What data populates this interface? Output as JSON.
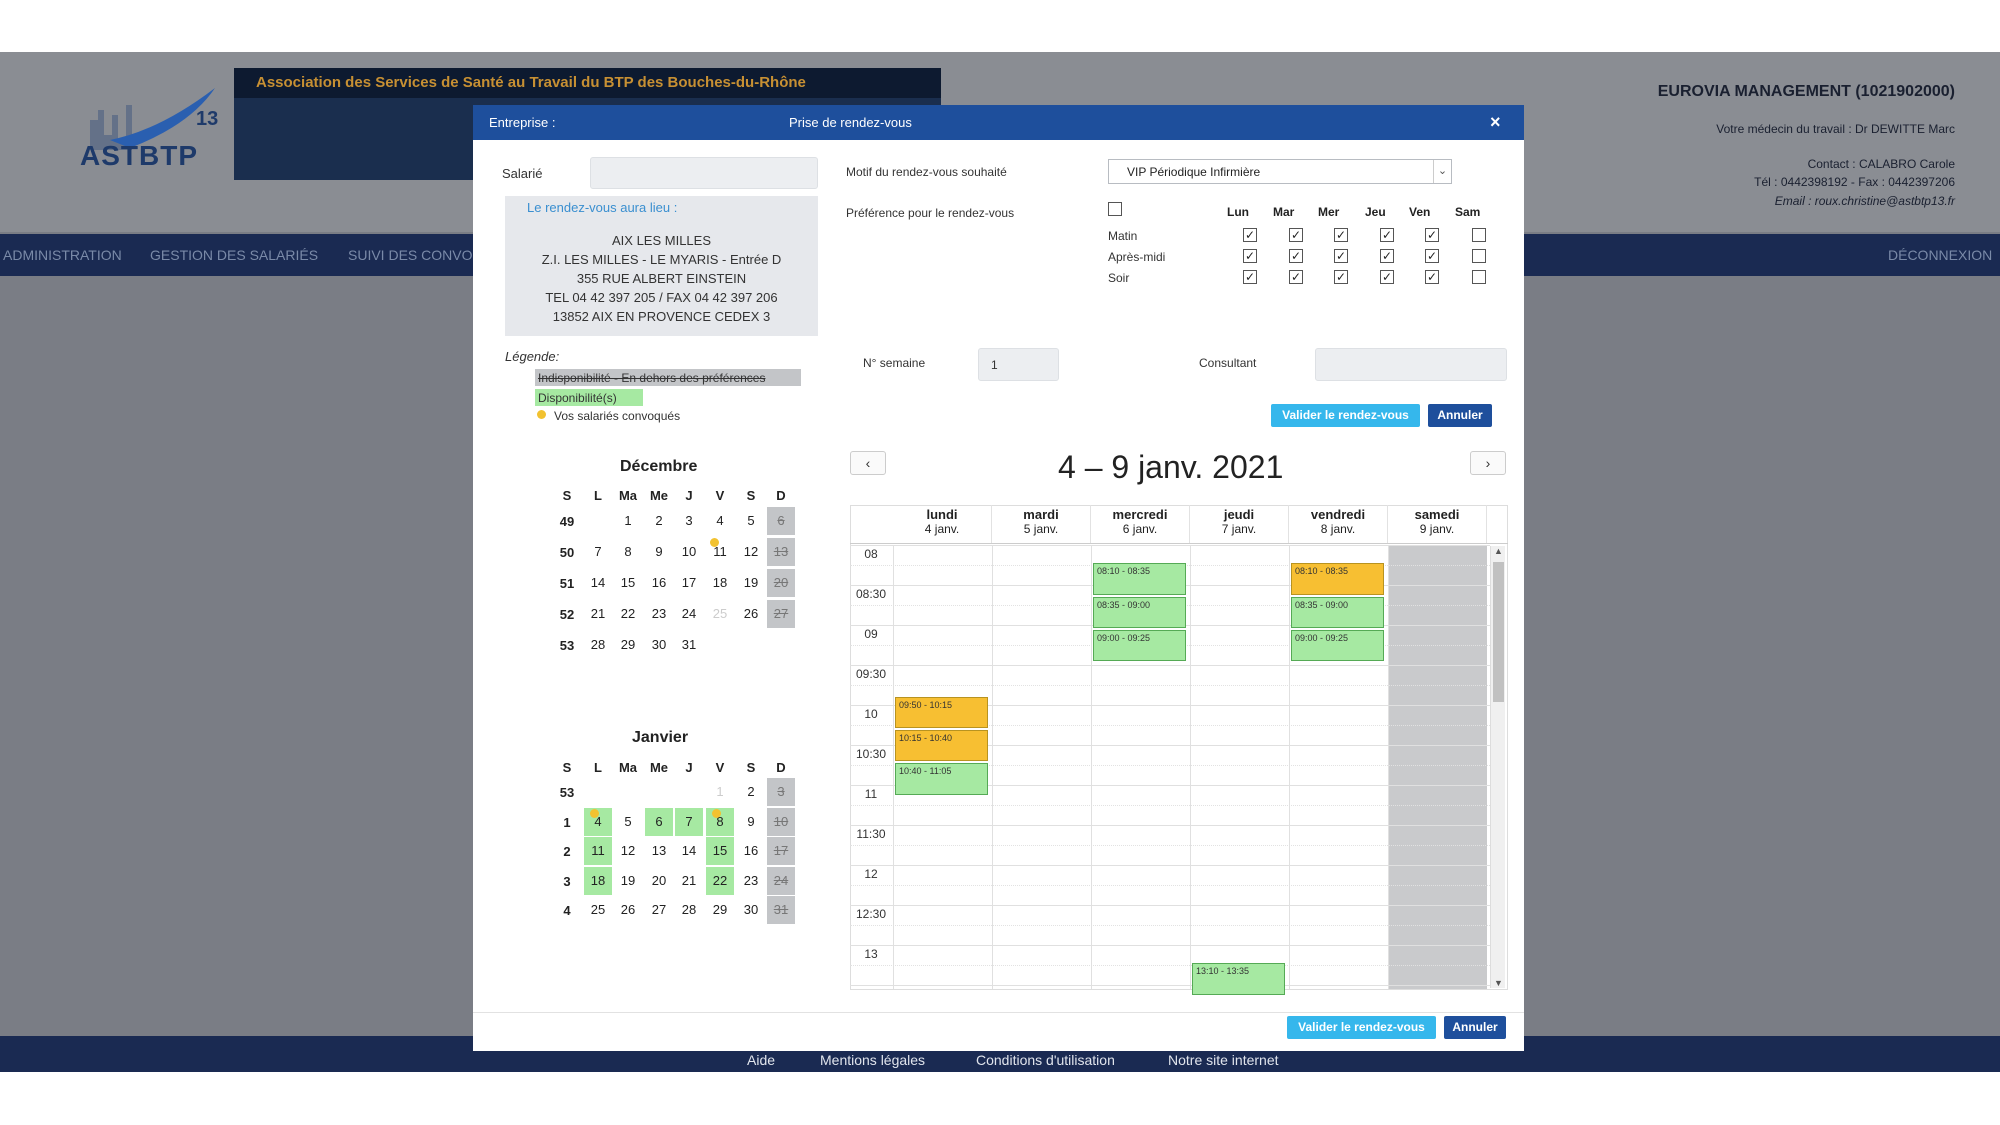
{
  "header": {
    "logo_text": "ASTBTP",
    "logo_num": "13",
    "banner_title": "Association des Services de Santé au Travail du BTP des Bouches-du-Rhône",
    "company": "EUROVIA MANAGEMENT (1021902000)",
    "medecin": "Votre médecin du travail : Dr DEWITTE Marc",
    "contact": "Contact : CALABRO Carole",
    "tel": "Tél : 0442398192 - Fax : 0442397206",
    "email": "Email : roux.christine@astbtp13.fr"
  },
  "nav": {
    "items": [
      "ADMINISTRATION",
      "GESTION DES SALARIÉS",
      "SUIVI DES CONVO"
    ],
    "logout": "DÉCONNEXION"
  },
  "footer": {
    "links": [
      "Aide",
      "Mentions légales",
      "Conditions d'utilisation",
      "Notre site internet"
    ]
  },
  "modal": {
    "entreprise_label": "Entreprise :",
    "title": "Prise de rendez-vous",
    "close": "×",
    "salarie_label": "Salarié",
    "salarie_value": "",
    "lieu_label": "Le rendez-vous aura lieu :",
    "address": [
      "AIX LES MILLES",
      "Z.I. LES MILLES - LE MYARIS - Entrée D",
      "355 RUE ALBERT EINSTEIN",
      "TEL 04 42 397 205 / FAX 04 42 397 206",
      "13852 AIX EN PROVENCE CEDEX 3"
    ],
    "legende_label": "Légende:",
    "legend_indispo": "Indisponibilité - En dehors des préférences",
    "legend_dispo": "Disponibilité(s)",
    "legend_convoques": "Vos salariés convoqués",
    "motif_label": "Motif du rendez-vous souhaité",
    "motif_value": "VIP Périodique Infirmière",
    "pref_label": "Préférence pour le rendez-vous",
    "pref_days": [
      "Lun",
      "Mar",
      "Mer",
      "Jeu",
      "Ven",
      "Sam"
    ],
    "pref_slots": [
      "Matin",
      "Après-midi",
      "Soir"
    ],
    "semaine_label": "N° semaine",
    "semaine_value": "1",
    "consultant_label": "Consultant",
    "consultant_value": "",
    "btn_valider": "Valider le rendez-vous",
    "btn_annuler": "Annuler"
  },
  "mini_calendars": {
    "headers": [
      "S",
      "L",
      "Ma",
      "Me",
      "J",
      "V",
      "S",
      "D"
    ],
    "december": {
      "title": "Décembre",
      "weeks": [
        [
          "49",
          "",
          "1",
          "2",
          "3",
          "4",
          "5",
          "6"
        ],
        [
          "50",
          "7",
          "8",
          "9",
          "10",
          "11",
          "12",
          "13"
        ],
        [
          "51",
          "14",
          "15",
          "16",
          "17",
          "18",
          "19",
          "20"
        ],
        [
          "52",
          "21",
          "22",
          "23",
          "24",
          "25",
          "26",
          "27"
        ],
        [
          "53",
          "28",
          "29",
          "30",
          "31",
          "",
          "",
          ""
        ]
      ]
    },
    "january": {
      "title": "Janvier",
      "weeks": [
        [
          "53",
          "",
          "",
          "",
          "",
          "1",
          "2",
          "3"
        ],
        [
          "1",
          "4",
          "5",
          "6",
          "7",
          "8",
          "9",
          "10"
        ],
        [
          "2",
          "11",
          "12",
          "13",
          "14",
          "15",
          "16",
          "17"
        ],
        [
          "3",
          "18",
          "19",
          "20",
          "21",
          "22",
          "23",
          "24"
        ],
        [
          "4",
          "25",
          "26",
          "27",
          "28",
          "29",
          "30",
          "31"
        ]
      ]
    }
  },
  "schedule": {
    "title": "4 – 9 janv. 2021",
    "prev": "‹",
    "next": "›",
    "days": [
      {
        "name": "lundi",
        "date": "4 janv."
      },
      {
        "name": "mardi",
        "date": "5 janv."
      },
      {
        "name": "mercredi",
        "date": "6 janv."
      },
      {
        "name": "jeudi",
        "date": "7 janv."
      },
      {
        "name": "vendredi",
        "date": "8 janv."
      },
      {
        "name": "samedi",
        "date": "9 janv."
      }
    ],
    "times": [
      "08",
      "08:30",
      "09",
      "09:30",
      "10",
      "10:30",
      "11",
      "11:30",
      "12",
      "12:30",
      "13"
    ],
    "events": [
      {
        "day": 2,
        "label": "08:10 - 08:35",
        "status": "available"
      },
      {
        "day": 2,
        "label": "08:35 - 09:00",
        "status": "available"
      },
      {
        "day": 2,
        "label": "09:00 - 09:25",
        "status": "available"
      },
      {
        "day": 4,
        "label": "08:10 - 08:35",
        "status": "convoque"
      },
      {
        "day": 4,
        "label": "08:35 - 09:00",
        "status": "available"
      },
      {
        "day": 4,
        "label": "09:00 - 09:25",
        "status": "available"
      },
      {
        "day": 0,
        "label": "09:50 - 10:15",
        "status": "convoque"
      },
      {
        "day": 0,
        "label": "10:15 - 10:40",
        "status": "convoque"
      },
      {
        "day": 0,
        "label": "10:40 - 11:05",
        "status": "available"
      },
      {
        "day": 3,
        "label": "13:10 - 13:35",
        "status": "available"
      }
    ]
  },
  "colors": {
    "primary": "#1e4f9c",
    "accent": "#35b7ec",
    "available": "#a6e9a2",
    "convoque": "#f7bf32",
    "unavailable": "#c3c5c8"
  }
}
